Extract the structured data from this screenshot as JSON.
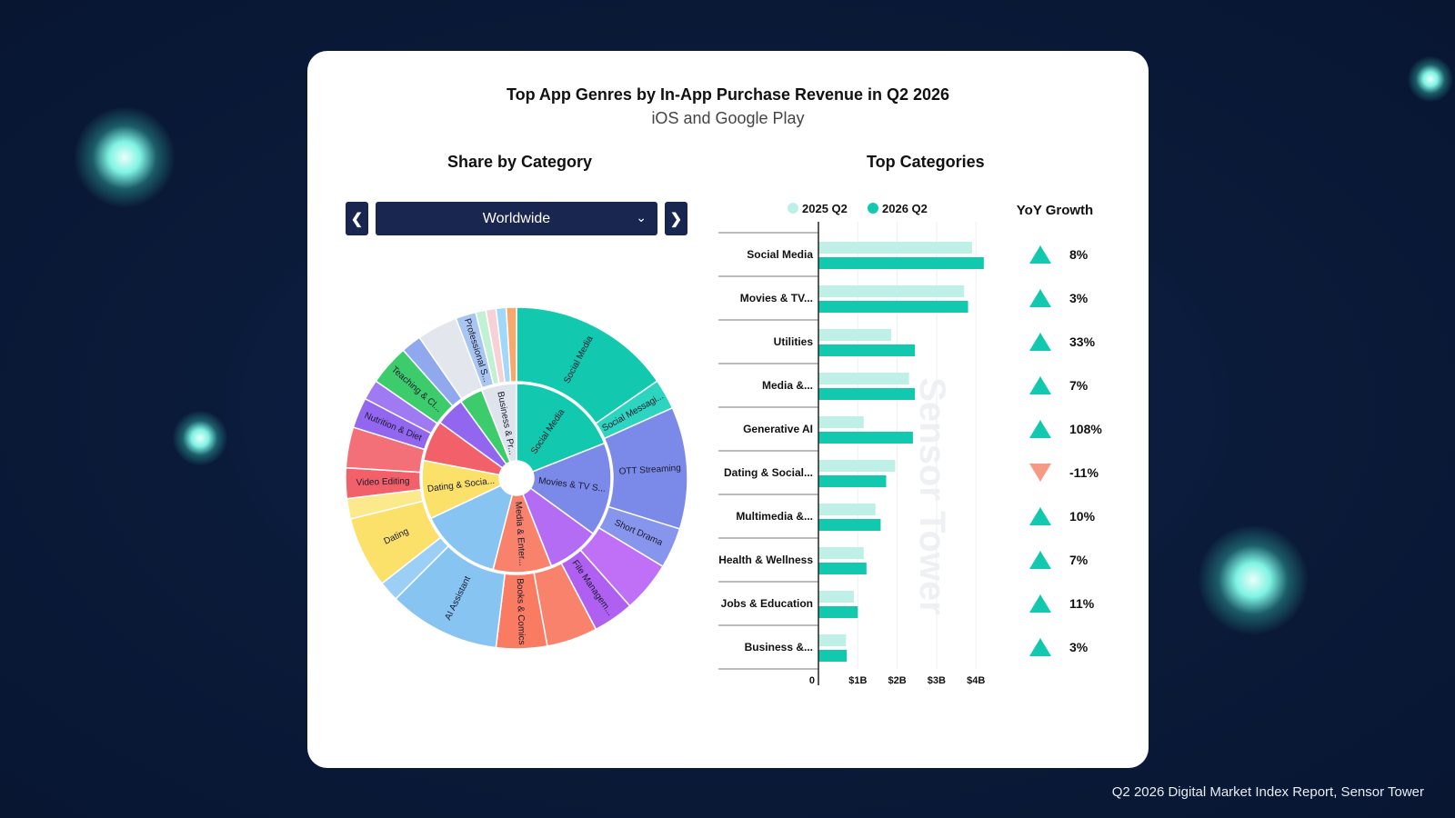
{
  "card": {
    "title": "Top App Genres by In-App Purchase Revenue in Q2 2026",
    "subtitle": "iOS and Google Play",
    "left_heading": "Share by Category",
    "right_heading": "Top Categories",
    "yoy_heading": "YoY Growth",
    "region_select": "Worldwide",
    "prev_icon": "chevron-left-icon",
    "next_icon": "chevron-right-icon",
    "dropdown_icon": "chevron-down-icon",
    "watermark": "Sensor Tower"
  },
  "caption": "Q2 2026 Digital Market Index Report, Sensor Tower",
  "colors": {
    "background": "#0b1b3a",
    "series_2025": "#bff0e7",
    "series_2026": "#12c9b0",
    "up": "#12c9b0",
    "down": "#f59a84",
    "nav": "#182650"
  },
  "chart_data": [
    {
      "type": "sunburst",
      "inner": [
        {
          "label": "Social Media",
          "share": 19,
          "color": "#12c9b0"
        },
        {
          "label": "Movies & TV S...",
          "share": 16,
          "color": "#7b8ae8"
        },
        {
          "label": "",
          "share": 9,
          "color": "#b46cf5"
        },
        {
          "label": "Media & Enter...",
          "share": 10,
          "color": "#f8826c"
        },
        {
          "label": "",
          "share": 14,
          "color": "#88c4f2"
        },
        {
          "label": "Dating & Socia...",
          "share": 10,
          "color": "#fbe06a"
        },
        {
          "label": "",
          "share": 7,
          "color": "#f2606a"
        },
        {
          "label": "",
          "share": 5,
          "color": "#9366f0"
        },
        {
          "label": "",
          "share": 4,
          "color": "#3dcc6c"
        },
        {
          "label": "Business & Pr...",
          "share": 6,
          "color": "#dfe4ec"
        }
      ],
      "outer": [
        {
          "label": "Social Media",
          "share": 16,
          "color": "#12c9b0"
        },
        {
          "label": "Social Messagi...",
          "share": 3,
          "color": "#2dd4bf"
        },
        {
          "label": "OTT Streaming",
          "share": 12,
          "color": "#7b8ae8"
        },
        {
          "label": "Short Drama",
          "share": 4,
          "color": "#8796ec"
        },
        {
          "label": "",
          "share": 5,
          "color": "#c070f7"
        },
        {
          "label": "File Managem...",
          "share": 4,
          "color": "#b060f0"
        },
        {
          "label": "",
          "share": 5,
          "color": "#f8826c"
        },
        {
          "label": "Books & Comics",
          "share": 5,
          "color": "#f97b62"
        },
        {
          "label": "AI Assistant",
          "share": 11,
          "color": "#88c4f2"
        },
        {
          "label": "",
          "share": 2,
          "color": "#9ccff5"
        },
        {
          "label": "Dating",
          "share": 7,
          "color": "#fbe06a"
        },
        {
          "label": "",
          "share": 2,
          "color": "#fce98c"
        },
        {
          "label": "Video Editing",
          "share": 3,
          "color": "#f2606a"
        },
        {
          "label": "",
          "share": 4,
          "color": "#f47078"
        },
        {
          "label": "Nutrition & Diet",
          "share": 3,
          "color": "#9366f0"
        },
        {
          "label": "",
          "share": 2,
          "color": "#a07af2"
        },
        {
          "label": "Teaching & Cl...",
          "share": 4,
          "color": "#3dcc6c"
        },
        {
          "label": "",
          "share": 2,
          "color": "#8fa8ee"
        },
        {
          "label": "",
          "share": 4,
          "color": "#e3e6ec"
        },
        {
          "label": "Professional S...",
          "share": 2,
          "color": "#a9c6f2"
        },
        {
          "label": "",
          "share": 1,
          "color": "#c2f0d4"
        },
        {
          "label": "",
          "share": 1,
          "color": "#f6d2d8"
        },
        {
          "label": "",
          "share": 1,
          "color": "#9fd8f8"
        },
        {
          "label": "",
          "share": 1,
          "color": "#f7a86a"
        }
      ]
    },
    {
      "type": "bar",
      "orientation": "horizontal",
      "categories": [
        "Social Media",
        "Movies & TV...",
        "Utilities",
        "Media &...",
        "Generative AI",
        "Dating & Social...",
        "Multimedia &...",
        "Health & Wellness",
        "Jobs & Education",
        "Business &..."
      ],
      "series": [
        {
          "name": "2025 Q2",
          "values": [
            3.9,
            3.7,
            1.85,
            2.3,
            1.15,
            1.95,
            1.45,
            1.15,
            0.9,
            0.7
          ]
        },
        {
          "name": "2026 Q2",
          "values": [
            4.2,
            3.8,
            2.45,
            2.45,
            2.4,
            1.72,
            1.58,
            1.22,
            1.0,
            0.72
          ]
        }
      ],
      "xticks": [
        "0",
        "$1B",
        "$2B",
        "$3B",
        "$4B"
      ],
      "xlim": [
        0,
        4.5
      ],
      "legend_position": "top",
      "yoy": [
        {
          "value": "8%",
          "dir": "up"
        },
        {
          "value": "3%",
          "dir": "up"
        },
        {
          "value": "33%",
          "dir": "up"
        },
        {
          "value": "7%",
          "dir": "up"
        },
        {
          "value": "108%",
          "dir": "up"
        },
        {
          "value": "-11%",
          "dir": "down"
        },
        {
          "value": "10%",
          "dir": "up"
        },
        {
          "value": "7%",
          "dir": "up"
        },
        {
          "value": "11%",
          "dir": "up"
        },
        {
          "value": "3%",
          "dir": "up"
        }
      ]
    }
  ]
}
